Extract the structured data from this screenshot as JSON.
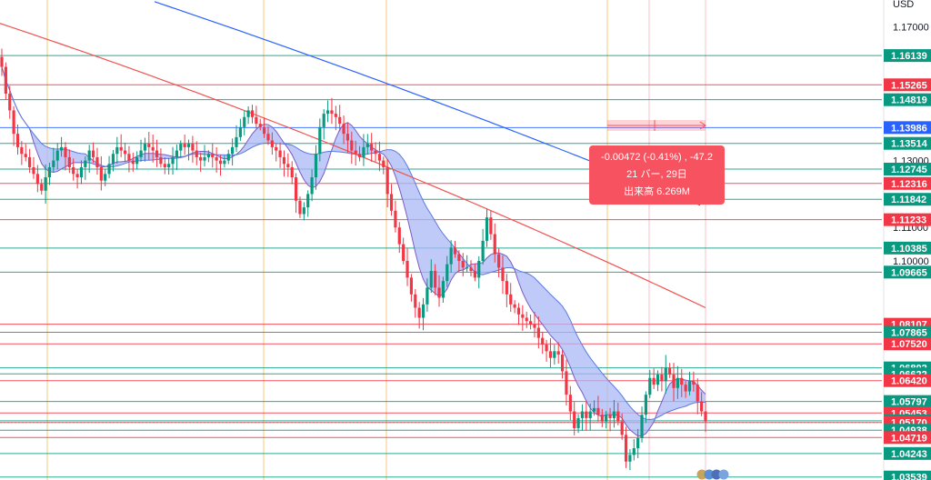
{
  "currency_label": "USD",
  "axis_labels": [
    "1.17000",
    "1.13000",
    "1.11000",
    "1.10000"
  ],
  "price_tags": [
    {
      "label": "1.16139",
      "y": 1.16139,
      "color": "#089981"
    },
    {
      "label": "1.15265",
      "y": 1.15265,
      "color": "#f23645"
    },
    {
      "label": "1.14819",
      "y": 1.14819,
      "color": "#089981"
    },
    {
      "label": "1.13986",
      "y": 1.13986,
      "color": "#2962ff"
    },
    {
      "label": "1.13514",
      "y": 1.13514,
      "color": "#089981"
    },
    {
      "label": "1.12745",
      "y": 1.12745,
      "color": "#089981"
    },
    {
      "label": "1.12316",
      "y": 1.12316,
      "color": "#f23645"
    },
    {
      "label": "1.11842",
      "y": 1.11842,
      "color": "#089981"
    },
    {
      "label": "1.11233",
      "y": 1.11233,
      "color": "#f23645"
    },
    {
      "label": "1.10385",
      "y": 1.10385,
      "color": "#089981"
    },
    {
      "label": "1.09665",
      "y": 1.09665,
      "color": "#089981"
    },
    {
      "label": "1.08107",
      "y": 1.08107,
      "color": "#f23645"
    },
    {
      "label": "1.07865",
      "y": 1.07865,
      "color": "#089981"
    },
    {
      "label": "1.07520",
      "y": 1.0752,
      "color": "#f23645"
    },
    {
      "label": "1.06802",
      "y": 1.06802,
      "color": "#089981"
    },
    {
      "label": "1.06622",
      "y": 1.06622,
      "color": "#089981"
    },
    {
      "label": "1.06420",
      "y": 1.0642,
      "color": "#f23645"
    },
    {
      "label": "1.05797",
      "y": 1.05797,
      "color": "#089981"
    },
    {
      "label": "1.05453",
      "y": 1.05453,
      "color": "#f23645"
    },
    {
      "label": "1.05221",
      "y": 1.05221,
      "color": "#089981"
    },
    {
      "label": "1.05170",
      "y": 1.0517,
      "color": "#f23645"
    },
    {
      "label": "1.04938",
      "y": 1.04938,
      "color": "#089981"
    },
    {
      "label": "1.04719",
      "y": 1.04719,
      "color": "#f23645"
    },
    {
      "label": "1.04243",
      "y": 1.04243,
      "color": "#089981"
    },
    {
      "label": "1.03539",
      "y": 1.03539,
      "color": "#089981"
    }
  ],
  "tooltip": {
    "line1": "-0.00472 (-0.41%) , -47.2",
    "line2": "21 バー, 29日",
    "line3": "出来高 6.269M"
  },
  "colors": {
    "up": "#089981",
    "down": "#f23645",
    "ma_slow": "#2962ff",
    "ma_mid": "#ef5350",
    "cloud_fill": "#a9b8f5",
    "cloud_line": "#7c5cc4",
    "session_line": "#f5b041",
    "tooltip_bg": "#f7525f"
  },
  "chart_data": {
    "type": "candlestick",
    "symbol_currency": "USD",
    "ylim": [
      1.0345,
      1.178
    ],
    "closes": [
      1.158,
      1.15,
      1.145,
      1.138,
      1.134,
      1.132,
      1.131,
      1.128,
      1.126,
      1.123,
      1.121,
      1.125,
      1.128,
      1.13,
      1.133,
      1.134,
      1.131,
      1.128,
      1.126,
      1.125,
      1.128,
      1.13,
      1.133,
      1.131,
      1.128,
      1.124,
      1.126,
      1.129,
      1.132,
      1.134,
      1.133,
      1.132,
      1.13,
      1.129,
      1.131,
      1.133,
      1.135,
      1.134,
      1.133,
      1.131,
      1.129,
      1.128,
      1.129,
      1.131,
      1.133,
      1.135,
      1.134,
      1.135,
      1.133,
      1.131,
      1.13,
      1.131,
      1.132,
      1.131,
      1.13,
      1.129,
      1.13,
      1.132,
      1.134,
      1.137,
      1.14,
      1.143,
      1.145,
      1.143,
      1.141,
      1.14,
      1.138,
      1.136,
      1.134,
      1.133,
      1.131,
      1.129,
      1.128,
      1.125,
      1.118,
      1.114,
      1.116,
      1.12,
      1.125,
      1.132,
      1.14,
      1.144,
      1.145,
      1.144,
      1.143,
      1.141,
      1.138,
      1.136,
      1.133,
      1.132,
      1.131,
      1.134,
      1.135,
      1.133,
      1.132,
      1.13,
      1.128,
      1.12,
      1.115,
      1.11,
      1.105,
      1.1,
      1.095,
      1.09,
      1.086,
      1.083,
      1.087,
      1.092,
      1.097,
      1.092,
      1.089,
      1.094,
      1.099,
      1.104,
      1.102,
      1.1,
      1.098,
      1.098,
      1.097,
      1.095,
      1.1,
      1.106,
      1.113,
      1.108,
      1.102,
      1.098,
      1.094,
      1.09,
      1.087,
      1.086,
      1.084,
      1.083,
      1.082,
      1.081,
      1.08,
      1.077,
      1.075,
      1.073,
      1.071,
      1.073,
      1.072,
      1.067,
      1.06,
      1.055,
      1.05,
      1.053,
      1.055,
      1.053,
      1.055,
      1.056,
      1.054,
      1.052,
      1.054,
      1.053,
      1.055,
      1.052,
      1.048,
      1.04,
      1.042,
      1.044,
      1.047,
      1.054,
      1.06,
      1.065,
      1.063,
      1.066,
      1.064,
      1.068,
      1.066,
      1.062,
      1.065,
      1.063,
      1.061,
      1.064,
      1.063,
      1.058,
      1.055,
      1.052
    ]
  }
}
